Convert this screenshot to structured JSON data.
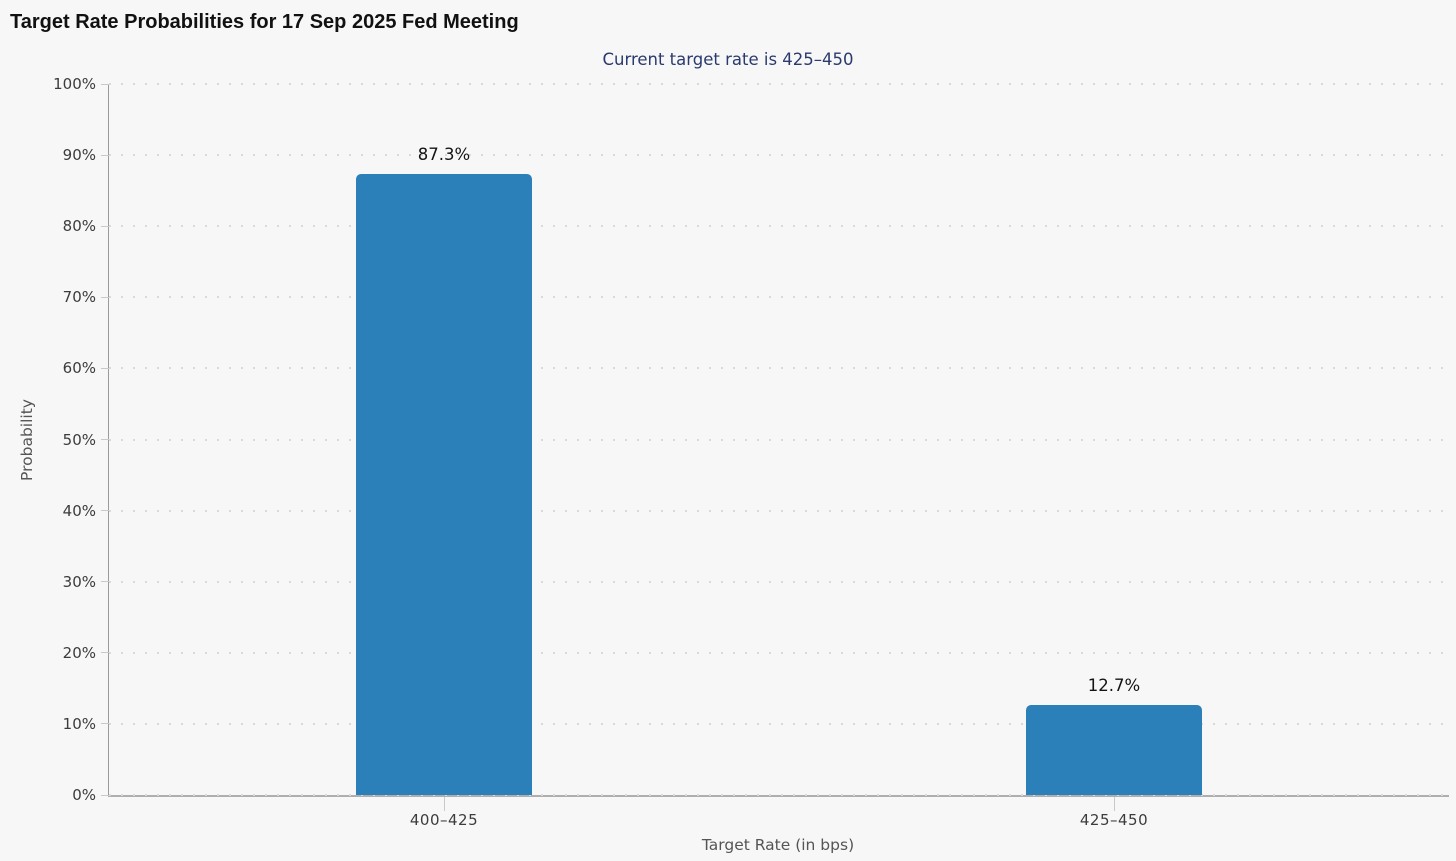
{
  "header": {
    "title": "Target Rate Probabilities for 17 Sep 2025 Fed Meeting",
    "subtitle": "Current target rate is 425–450"
  },
  "chart_data": {
    "type": "bar",
    "title": "Target Rate Probabilities for 17 Sep 2025 Fed Meeting",
    "subtitle": "Current target rate is 425–450",
    "categories": [
      "400–425",
      "425–450"
    ],
    "values": [
      87.3,
      12.7
    ],
    "value_labels": [
      "87.3%",
      "12.7%"
    ],
    "xlabel": "Target Rate (in bps)",
    "ylabel": "Probability",
    "ylim": [
      0,
      100
    ],
    "ytick_step": 10,
    "yticks": [
      "0%",
      "10%",
      "20%",
      "30%",
      "40%",
      "50%",
      "60%",
      "70%",
      "80%",
      "90%",
      "100%"
    ],
    "grid": "dotted-horizontal",
    "legend": "none",
    "colors": {
      "bar": "#2b80b9",
      "subtitle_text": "#2a3a6d",
      "title_text": "#111111",
      "axis_text": "#3c3c3c",
      "muted_text": "#555555",
      "background": "#f7f7f7"
    }
  }
}
